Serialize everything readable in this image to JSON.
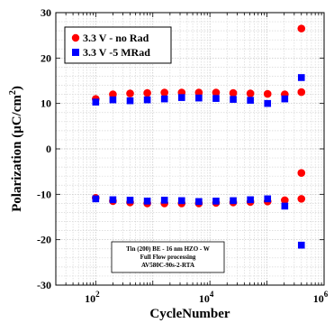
{
  "chart_data": {
    "type": "scatter",
    "title": "",
    "xlabel": "CycleNumber",
    "ylabel": "Polarization (μC/cm²)",
    "xscale": "log",
    "xlim": [
      20,
      1000000
    ],
    "ylim": [
      -30,
      30
    ],
    "grid": true,
    "legend_position": "top-left",
    "x_ticks": [
      {
        "value": 100,
        "base": "10",
        "exp": "2"
      },
      {
        "value": 10000,
        "base": "10",
        "exp": "4"
      },
      {
        "value": 1000000,
        "base": "10",
        "exp": "6"
      }
    ],
    "y_ticks": [
      {
        "value": -30,
        "label": "-30"
      },
      {
        "value": -20,
        "label": "-20"
      },
      {
        "value": -10,
        "label": "-10"
      },
      {
        "value": 0,
        "label": "0"
      },
      {
        "value": 10,
        "label": "10"
      },
      {
        "value": 20,
        "label": "20"
      },
      {
        "value": 30,
        "label": "30"
      }
    ],
    "annotation_lines": [
      "Tin (200) BE - 16 nm HZO - W",
      "Full Flow processing",
      "AV580C-90s-2-RTA"
    ],
    "series": [
      {
        "name": "3.3 V - no Rad",
        "color": "#ff0000",
        "marker": "circle",
        "points": [
          {
            "x": 100,
            "y": 11.0
          },
          {
            "x": 200,
            "y": 12.0
          },
          {
            "x": 400,
            "y": 12.2
          },
          {
            "x": 800,
            "y": 12.3
          },
          {
            "x": 1600,
            "y": 12.4
          },
          {
            "x": 3200,
            "y": 12.4
          },
          {
            "x": 6400,
            "y": 12.4
          },
          {
            "x": 12800,
            "y": 12.4
          },
          {
            "x": 25600,
            "y": 12.3
          },
          {
            "x": 51200,
            "y": 12.2
          },
          {
            "x": 102400,
            "y": 12.1
          },
          {
            "x": 204800,
            "y": 12.0
          },
          {
            "x": 400000,
            "y": 26.5
          },
          {
            "x": 400000,
            "y": 12.5
          },
          {
            "x": 100,
            "y": -10.8
          },
          {
            "x": 200,
            "y": -11.5
          },
          {
            "x": 400,
            "y": -11.8
          },
          {
            "x": 800,
            "y": -12.0
          },
          {
            "x": 1600,
            "y": -12.0
          },
          {
            "x": 3200,
            "y": -12.0
          },
          {
            "x": 6400,
            "y": -12.0
          },
          {
            "x": 12800,
            "y": -11.9
          },
          {
            "x": 25600,
            "y": -11.8
          },
          {
            "x": 51200,
            "y": -11.7
          },
          {
            "x": 102400,
            "y": -11.6
          },
          {
            "x": 204800,
            "y": -11.3
          },
          {
            "x": 400000,
            "y": -5.3
          },
          {
            "x": 400000,
            "y": -11.0
          }
        ]
      },
      {
        "name": "3.3 V -5 MRad",
        "color": "#0000ff",
        "marker": "square",
        "points": [
          {
            "x": 100,
            "y": 10.3
          },
          {
            "x": 200,
            "y": 10.8
          },
          {
            "x": 400,
            "y": 10.6
          },
          {
            "x": 800,
            "y": 10.8
          },
          {
            "x": 1600,
            "y": 11.0
          },
          {
            "x": 3200,
            "y": 11.3
          },
          {
            "x": 6400,
            "y": 11.2
          },
          {
            "x": 12800,
            "y": 11.1
          },
          {
            "x": 25600,
            "y": 10.9
          },
          {
            "x": 51200,
            "y": 10.7
          },
          {
            "x": 102400,
            "y": 10.0
          },
          {
            "x": 204800,
            "y": 11.0
          },
          {
            "x": 400000,
            "y": 15.7
          },
          {
            "x": 100,
            "y": -11.0
          },
          {
            "x": 200,
            "y": -11.2
          },
          {
            "x": 400,
            "y": -11.3
          },
          {
            "x": 800,
            "y": -11.5
          },
          {
            "x": 1600,
            "y": -11.3
          },
          {
            "x": 3200,
            "y": -11.4
          },
          {
            "x": 6400,
            "y": -11.6
          },
          {
            "x": 12800,
            "y": -11.5
          },
          {
            "x": 25600,
            "y": -11.4
          },
          {
            "x": 51200,
            "y": -11.2
          },
          {
            "x": 102400,
            "y": -11.0
          },
          {
            "x": 204800,
            "y": -12.6
          },
          {
            "x": 400000,
            "y": -21.2
          }
        ]
      }
    ]
  }
}
